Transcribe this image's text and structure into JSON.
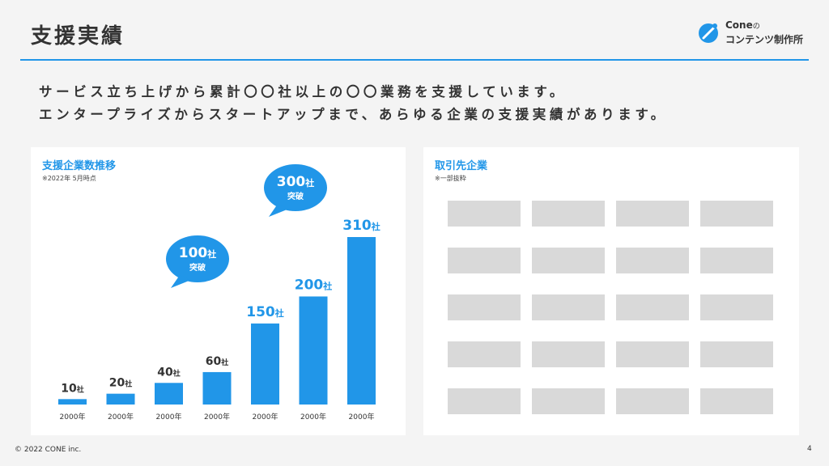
{
  "header": {
    "title": "支援実績",
    "logo_line1": "Cone",
    "logo_no": "の",
    "logo_line2": "コンテンツ制作所",
    "accent_color": "#2196e8"
  },
  "intro": {
    "line1": "サービス立ち上げから累計〇〇社以上の〇〇業務を支援しています。",
    "line2": "エンタープライズからスタートアップまで、あらゆる企業の支援実績があります。"
  },
  "left_panel": {
    "title": "支援企業数推移",
    "note": "※2022年 5月時点"
  },
  "right_panel": {
    "title": "取引先企業",
    "note": "※一部抜粋",
    "logo_rows": 5,
    "logo_cols": 4
  },
  "chart_data": {
    "type": "bar",
    "categories": [
      "2000年",
      "2000年",
      "2000年",
      "2000年",
      "2000年",
      "2000年",
      "2000年"
    ],
    "values": [
      10,
      20,
      40,
      60,
      150,
      200,
      310
    ],
    "data_labels": [
      "10",
      "20",
      "40",
      "60",
      "150",
      "200",
      "310"
    ],
    "unit": "社",
    "bar_color": "#2196e8",
    "ylim": [
      0,
      310
    ],
    "callouts": [
      {
        "value": "100",
        "unit": "社",
        "text": "突破",
        "near_index": 3
      },
      {
        "value": "300",
        "unit": "社",
        "text": "突破",
        "near_index": 5
      }
    ],
    "grid": false,
    "legend": "none"
  },
  "footer": {
    "copyright": "© 2022 CONE inc.",
    "page_number": "4"
  }
}
